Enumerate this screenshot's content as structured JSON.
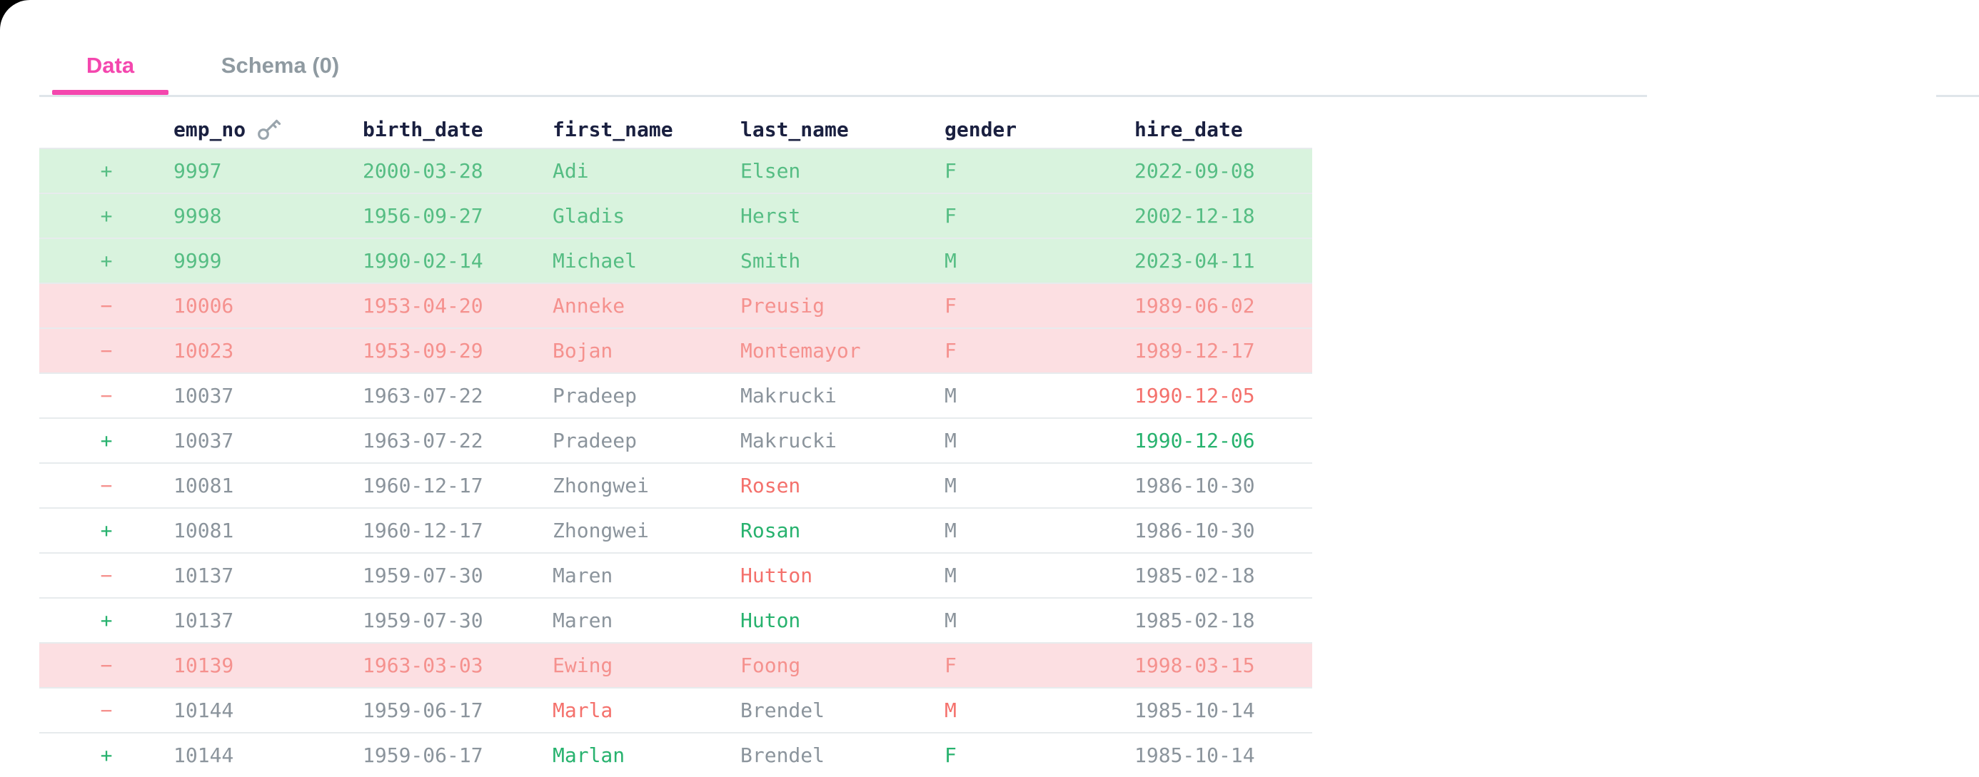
{
  "tabs": [
    {
      "label": "Data",
      "active": true
    },
    {
      "label": "Schema (0)",
      "active": false
    }
  ],
  "table": {
    "columns": [
      "emp_no",
      "birth_date",
      "first_name",
      "last_name",
      "gender",
      "hire_date"
    ],
    "key_column": "emp_no",
    "key_icon": "key-icon",
    "rows": [
      {
        "marker": "+",
        "marker_color": "g",
        "bg": "green",
        "cells": [
          {
            "t": "9997",
            "c": "g"
          },
          {
            "t": "2000-03-28",
            "c": "g"
          },
          {
            "t": "Adi",
            "c": "g"
          },
          {
            "t": "Elsen",
            "c": "g"
          },
          {
            "t": "F",
            "c": "g"
          },
          {
            "t": "2022-09-08",
            "c": "g"
          }
        ]
      },
      {
        "marker": "+",
        "marker_color": "g",
        "bg": "green",
        "cells": [
          {
            "t": "9998",
            "c": "g"
          },
          {
            "t": "1956-09-27",
            "c": "g"
          },
          {
            "t": "Gladis",
            "c": "g"
          },
          {
            "t": "Herst",
            "c": "g"
          },
          {
            "t": "F",
            "c": "g"
          },
          {
            "t": "2002-12-18",
            "c": "g"
          }
        ]
      },
      {
        "marker": "+",
        "marker_color": "g",
        "bg": "green",
        "cells": [
          {
            "t": "9999",
            "c": "g"
          },
          {
            "t": "1990-02-14",
            "c": "g"
          },
          {
            "t": "Michael",
            "c": "g"
          },
          {
            "t": "Smith",
            "c": "g"
          },
          {
            "t": "M",
            "c": "g"
          },
          {
            "t": "2023-04-11",
            "c": "g"
          }
        ]
      },
      {
        "marker": "−",
        "marker_color": "r",
        "bg": "red",
        "cells": [
          {
            "t": "10006",
            "c": "r"
          },
          {
            "t": "1953-04-20",
            "c": "r"
          },
          {
            "t": "Anneke",
            "c": "r"
          },
          {
            "t": "Preusig",
            "c": "r"
          },
          {
            "t": "F",
            "c": "r"
          },
          {
            "t": "1989-06-02",
            "c": "r"
          }
        ]
      },
      {
        "marker": "−",
        "marker_color": "r",
        "bg": "red",
        "cells": [
          {
            "t": "10023",
            "c": "r"
          },
          {
            "t": "1953-09-29",
            "c": "r"
          },
          {
            "t": "Bojan",
            "c": "r"
          },
          {
            "t": "Montemayor",
            "c": "r"
          },
          {
            "t": "F",
            "c": "r"
          },
          {
            "t": "1989-12-17",
            "c": "r"
          }
        ]
      },
      {
        "marker": "−",
        "marker_color": "r",
        "bg": "white",
        "cells": [
          {
            "t": "10037",
            "c": "m"
          },
          {
            "t": "1963-07-22",
            "c": "m"
          },
          {
            "t": "Pradeep",
            "c": "m"
          },
          {
            "t": "Makrucki",
            "c": "m"
          },
          {
            "t": "M",
            "c": "m"
          },
          {
            "t": "1990-12-05",
            "c": "R"
          }
        ]
      },
      {
        "marker": "+",
        "marker_color": "G",
        "bg": "white",
        "cells": [
          {
            "t": "10037",
            "c": "m"
          },
          {
            "t": "1963-07-22",
            "c": "m"
          },
          {
            "t": "Pradeep",
            "c": "m"
          },
          {
            "t": "Makrucki",
            "c": "m"
          },
          {
            "t": "M",
            "c": "m"
          },
          {
            "t": "1990-12-06",
            "c": "G"
          }
        ]
      },
      {
        "marker": "−",
        "marker_color": "r",
        "bg": "white",
        "cells": [
          {
            "t": "10081",
            "c": "m"
          },
          {
            "t": "1960-12-17",
            "c": "m"
          },
          {
            "t": "Zhongwei",
            "c": "m"
          },
          {
            "t": "Rosen",
            "c": "R"
          },
          {
            "t": "M",
            "c": "m"
          },
          {
            "t": "1986-10-30",
            "c": "m"
          }
        ]
      },
      {
        "marker": "+",
        "marker_color": "G",
        "bg": "white",
        "cells": [
          {
            "t": "10081",
            "c": "m"
          },
          {
            "t": "1960-12-17",
            "c": "m"
          },
          {
            "t": "Zhongwei",
            "c": "m"
          },
          {
            "t": "Rosan",
            "c": "G"
          },
          {
            "t": "M",
            "c": "m"
          },
          {
            "t": "1986-10-30",
            "c": "m"
          }
        ]
      },
      {
        "marker": "−",
        "marker_color": "r",
        "bg": "white",
        "cells": [
          {
            "t": "10137",
            "c": "m"
          },
          {
            "t": "1959-07-30",
            "c": "m"
          },
          {
            "t": "Maren",
            "c": "m"
          },
          {
            "t": "Hutton",
            "c": "R"
          },
          {
            "t": "M",
            "c": "m"
          },
          {
            "t": "1985-02-18",
            "c": "m"
          }
        ]
      },
      {
        "marker": "+",
        "marker_color": "G",
        "bg": "white",
        "cells": [
          {
            "t": "10137",
            "c": "m"
          },
          {
            "t": "1959-07-30",
            "c": "m"
          },
          {
            "t": "Maren",
            "c": "m"
          },
          {
            "t": "Huton",
            "c": "G"
          },
          {
            "t": "M",
            "c": "m"
          },
          {
            "t": "1985-02-18",
            "c": "m"
          }
        ]
      },
      {
        "marker": "−",
        "marker_color": "r",
        "bg": "red",
        "cells": [
          {
            "t": "10139",
            "c": "r"
          },
          {
            "t": "1963-03-03",
            "c": "r"
          },
          {
            "t": "Ewing",
            "c": "r"
          },
          {
            "t": "Foong",
            "c": "r"
          },
          {
            "t": "F",
            "c": "r"
          },
          {
            "t": "1998-03-15",
            "c": "r"
          }
        ]
      },
      {
        "marker": "−",
        "marker_color": "r",
        "bg": "white",
        "cells": [
          {
            "t": "10144",
            "c": "m"
          },
          {
            "t": "1959-06-17",
            "c": "m"
          },
          {
            "t": "Marla",
            "c": "R"
          },
          {
            "t": "Brendel",
            "c": "m"
          },
          {
            "t": "M",
            "c": "R"
          },
          {
            "t": "1985-10-14",
            "c": "m"
          }
        ]
      },
      {
        "marker": "+",
        "marker_color": "G",
        "bg": "white",
        "cells": [
          {
            "t": "10144",
            "c": "m"
          },
          {
            "t": "1959-06-17",
            "c": "m"
          },
          {
            "t": "Marlan",
            "c": "G"
          },
          {
            "t": "Brendel",
            "c": "m"
          },
          {
            "t": "F",
            "c": "G"
          },
          {
            "t": "1985-10-14",
            "c": "m"
          }
        ]
      }
    ]
  },
  "colors": {
    "accent_pink": "#f447ae",
    "tab_inactive": "#8f9aa1",
    "header_text": "#1a2040",
    "added_row_bg": "#d9f3de",
    "added_row_text": "#55bd83",
    "removed_row_bg": "#fcdfe2",
    "removed_row_text": "#f5918e",
    "added_cell_text": "#27b26e",
    "removed_cell_text": "#f4716c",
    "unchanged_text": "#8b949c",
    "divider": "#dfe5ea",
    "row_separator": "#e7ebed",
    "corner_backdrop": "#000000"
  }
}
